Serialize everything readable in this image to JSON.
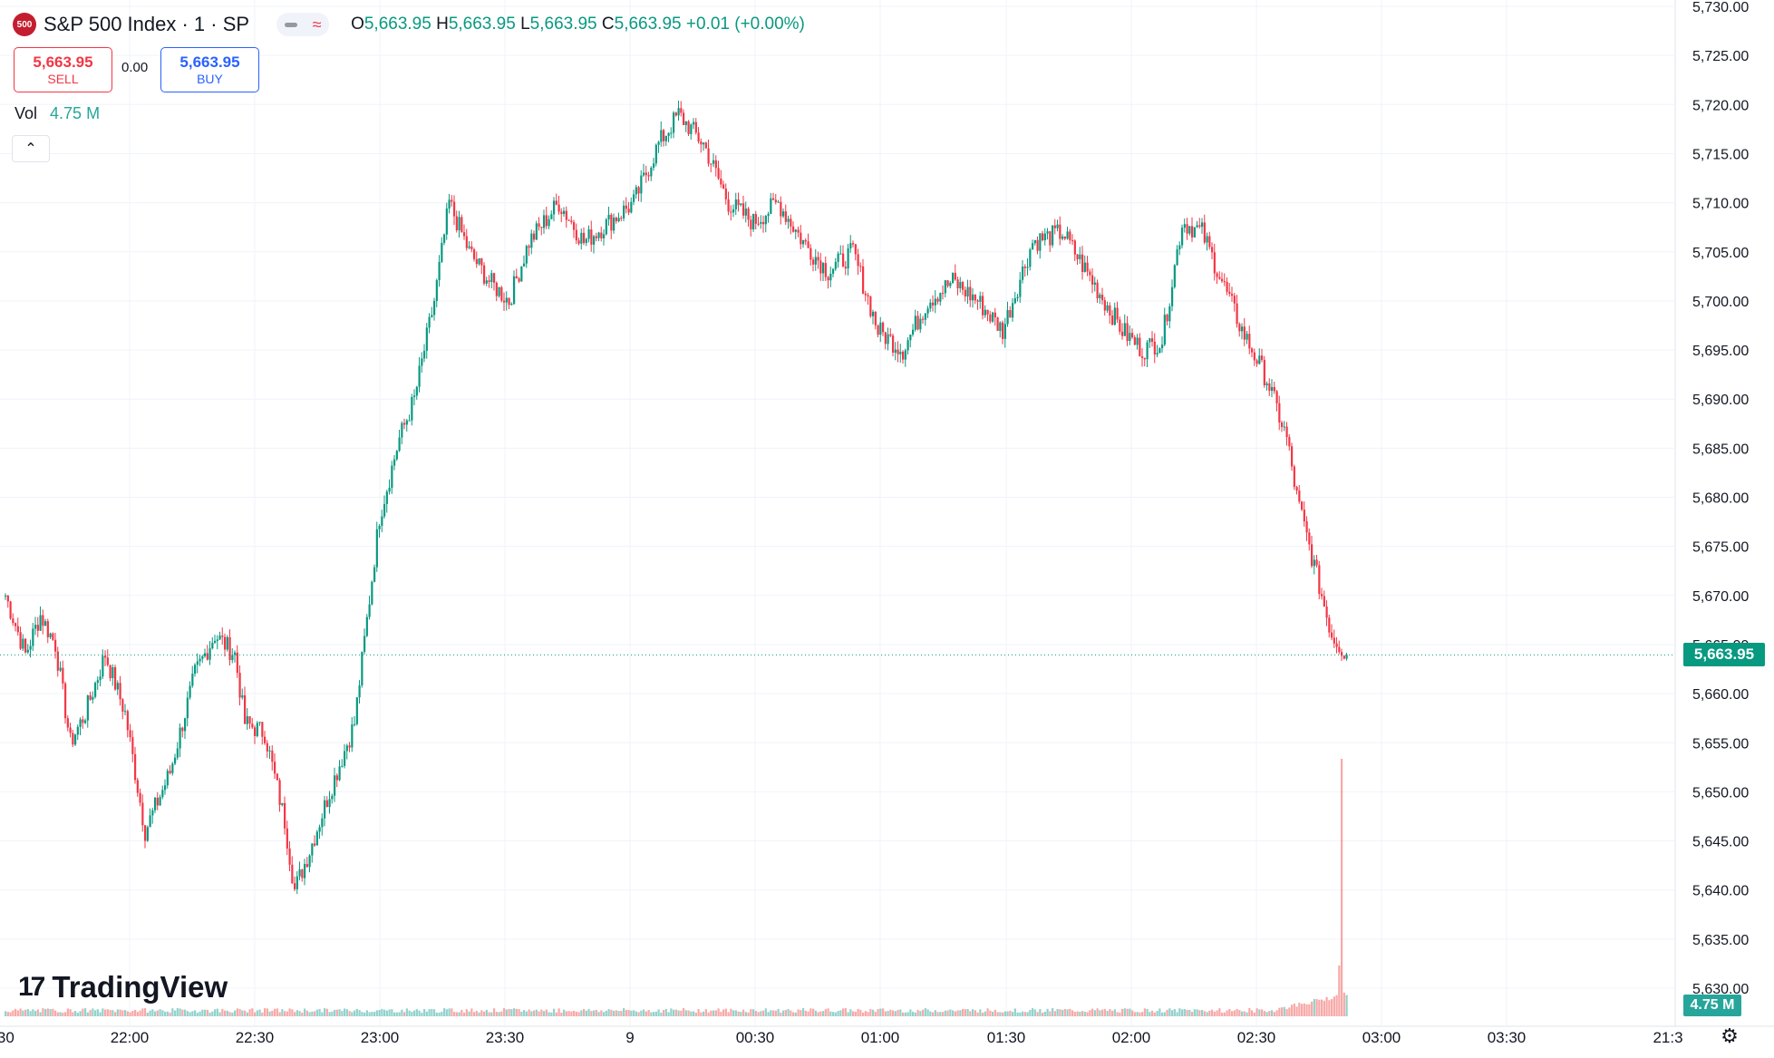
{
  "header": {
    "symbol_badge": "500",
    "title": "S&P 500 Index · 1 · SP",
    "ohlc": {
      "o_label": "O",
      "o_value": "5,663.95",
      "h_label": "H",
      "h_value": "5,663.95",
      "l_label": "L",
      "l_value": "5,663.95",
      "c_label": "C",
      "c_value": "5,663.95",
      "change": "+0.01 (+0.00%)"
    }
  },
  "trade": {
    "sell_price": "5,663.95",
    "sell_label": "SELL",
    "spread": "0.00",
    "buy_price": "5,663.95",
    "buy_label": "BUY"
  },
  "volume": {
    "label": "Vol",
    "value": "4.75 M",
    "tag": "4.75 M"
  },
  "last_price_tag": "5,663.95",
  "logo_text": "TradingView",
  "icons": {
    "collapse": "chevron-up-icon",
    "settings": "gear-icon",
    "logo": "tradingview-logo-icon"
  },
  "colors": {
    "up": "#089981",
    "down": "#f23645",
    "vol_up": "#26a69a",
    "vol_down": "#ef5350"
  },
  "chart_data": {
    "type": "candlestick",
    "title": "S&P 500 Index · 1 · SP",
    "ylim": [
      5627.5,
      5730
    ],
    "y_ticks": [
      "5,630.00",
      "5,635.00",
      "5,640.00",
      "5,645.00",
      "5,650.00",
      "5,655.00",
      "5,660.00",
      "5,665.00",
      "5,670.00",
      "5,675.00",
      "5,680.00",
      "5,685.00",
      "5,690.00",
      "5,695.00",
      "5,700.00",
      "5,705.00",
      "5,710.00",
      "5,715.00",
      "5,720.00",
      "5,725.00",
      "5,730.00"
    ],
    "x_ticks": [
      ":30",
      "22:00",
      "22:30",
      "23:00",
      "23:30",
      "9",
      "00:30",
      "01:00",
      "01:30",
      "02:00",
      "02:30",
      "03:00",
      "03:30",
      "21:3"
    ],
    "last_price": 5663.95,
    "anchors": [
      [
        0,
        5670
      ],
      [
        8,
        5664
      ],
      [
        14,
        5668
      ],
      [
        20,
        5665
      ],
      [
        26,
        5655
      ],
      [
        32,
        5658
      ],
      [
        40,
        5664
      ],
      [
        48,
        5658
      ],
      [
        56,
        5646
      ],
      [
        66,
        5652
      ],
      [
        76,
        5662
      ],
      [
        84,
        5666
      ],
      [
        92,
        5664
      ],
      [
        96,
        5657
      ],
      [
        104,
        5656
      ],
      [
        112,
        5647
      ],
      [
        116,
        5640
      ],
      [
        122,
        5644
      ],
      [
        130,
        5650
      ],
      [
        140,
        5657
      ],
      [
        150,
        5678
      ],
      [
        158,
        5686
      ],
      [
        164,
        5690
      ],
      [
        172,
        5700
      ],
      [
        178,
        5710
      ],
      [
        186,
        5705
      ],
      [
        194,
        5702
      ],
      [
        202,
        5700
      ],
      [
        210,
        5706
      ],
      [
        222,
        5710
      ],
      [
        232,
        5706
      ],
      [
        242,
        5708
      ],
      [
        252,
        5710
      ],
      [
        262,
        5716
      ],
      [
        270,
        5719
      ],
      [
        280,
        5716
      ],
      [
        290,
        5710
      ],
      [
        300,
        5708
      ],
      [
        310,
        5710
      ],
      [
        320,
        5706
      ],
      [
        330,
        5703
      ],
      [
        340,
        5705
      ],
      [
        350,
        5697
      ],
      [
        360,
        5695
      ],
      [
        370,
        5700
      ],
      [
        380,
        5702
      ],
      [
        390,
        5700
      ],
      [
        400,
        5697
      ],
      [
        412,
        5706
      ],
      [
        424,
        5707
      ],
      [
        436,
        5702
      ],
      [
        448,
        5697
      ],
      [
        456,
        5695
      ],
      [
        464,
        5696
      ],
      [
        472,
        5708
      ],
      [
        480,
        5707
      ],
      [
        488,
        5702
      ],
      [
        496,
        5697
      ],
      [
        506,
        5692
      ],
      [
        514,
        5686
      ],
      [
        518,
        5680
      ],
      [
        526,
        5672
      ],
      [
        532,
        5666
      ],
      [
        538,
        5663.95
      ]
    ],
    "last_index": 538,
    "volume_spike": {
      "index": 536,
      "value": "4.75M"
    }
  }
}
